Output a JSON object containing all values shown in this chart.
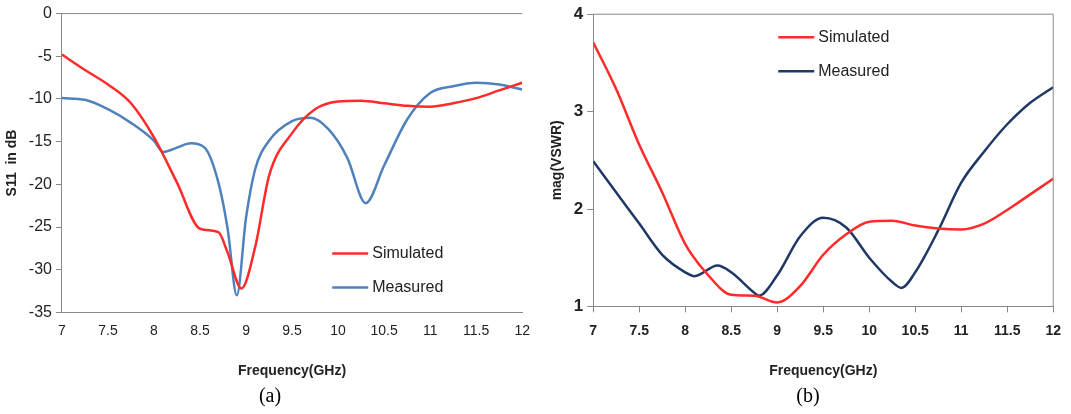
{
  "chart_data": [
    {
      "type": "line",
      "xlabel": "Frequency(GHz)",
      "ylabel": "S11  in dB",
      "xlim": [
        7,
        12
      ],
      "ylim": [
        -35,
        0
      ],
      "xticks": [
        7,
        7.5,
        8,
        8.5,
        9,
        9.5,
        10,
        10.5,
        11,
        11.5,
        12
      ],
      "yticks": [
        -35,
        -30,
        -25,
        -20,
        -15,
        -10,
        -5,
        0
      ],
      "grid": false,
      "legend": "bottom right",
      "marker": "none",
      "annotations": [
        "(a)"
      ],
      "series": [
        {
          "name": "Simulated",
          "color": "#ff2a2a",
          "x": [
            7,
            7.25,
            7.5,
            7.75,
            8,
            8.25,
            8.5,
            8.7,
            8.8,
            8.95,
            9.1,
            9.25,
            9.5,
            9.75,
            10,
            10.25,
            10.5,
            10.75,
            11,
            11.25,
            11.5,
            11.75,
            12
          ],
          "values": [
            -4.8,
            -6.6,
            -8.3,
            -10.5,
            -14.5,
            -19.8,
            -25.2,
            -25.6,
            -28,
            -32.2,
            -27.3,
            -19,
            -14,
            -11.2,
            -10.3,
            -10.2,
            -10.5,
            -10.8,
            -10.9,
            -10.5,
            -9.9,
            -9,
            -8.1
          ]
        },
        {
          "name": "Measured",
          "color": "#4f81bd",
          "x": [
            7,
            7.25,
            7.5,
            7.75,
            8,
            8.1,
            8.25,
            8.4,
            8.55,
            8.7,
            8.8,
            8.9,
            9,
            9.1,
            9.25,
            9.5,
            9.7,
            9.9,
            10.1,
            10.3,
            10.5,
            10.75,
            11,
            11.25,
            11.5,
            11.75,
            12
          ],
          "values": [
            -9.9,
            -10.1,
            -11.2,
            -12.8,
            -14.9,
            -16.2,
            -15.7,
            -15.2,
            -15.7,
            -19.8,
            -25.2,
            -33,
            -23.9,
            -18.2,
            -14.9,
            -12.6,
            -12.2,
            -13.6,
            -16.9,
            -22.2,
            -17.8,
            -12.4,
            -9.3,
            -8.5,
            -8.1,
            -8.3,
            -8.9
          ]
        }
      ]
    },
    {
      "type": "line",
      "xlabel": "Frequency(GHz)",
      "ylabel": "mag(VSWR)",
      "xlim": [
        7,
        12
      ],
      "ylim": [
        1,
        4
      ],
      "xticks": [
        7,
        7.5,
        8,
        8.5,
        9,
        9.5,
        10,
        10.5,
        11,
        11.5,
        12
      ],
      "yticks": [
        1,
        2,
        3,
        4
      ],
      "grid": false,
      "legend": "top",
      "marker": "none",
      "annotations": [
        "(b)"
      ],
      "series": [
        {
          "name": "Simulated",
          "color": "#ff2a2a",
          "x": [
            7,
            7.25,
            7.5,
            7.75,
            8,
            8.25,
            8.5,
            8.75,
            9,
            9.25,
            9.5,
            9.75,
            10,
            10.25,
            10.5,
            10.75,
            11,
            11.25,
            11.5,
            11.75,
            12
          ],
          "values": [
            3.71,
            3.23,
            2.66,
            2.17,
            1.64,
            1.32,
            1.12,
            1.11,
            1.04,
            1.21,
            1.53,
            1.74,
            1.87,
            1.88,
            1.83,
            1.8,
            1.79,
            1.85,
            1.99,
            2.15,
            2.31
          ]
        },
        {
          "name": "Measured",
          "color": "#1f3864",
          "x": [
            7,
            7.25,
            7.5,
            7.75,
            8,
            8.1,
            8.35,
            8.5,
            8.75,
            8.8,
            9,
            9.25,
            9.5,
            9.75,
            10,
            10.25,
            10.35,
            10.5,
            10.75,
            11,
            11.25,
            11.5,
            11.75,
            12
          ],
          "values": [
            2.49,
            2.17,
            1.85,
            1.53,
            1.35,
            1.31,
            1.42,
            1.35,
            1.14,
            1.11,
            1.32,
            1.72,
            1.91,
            1.81,
            1.5,
            1.25,
            1.19,
            1.35,
            1.78,
            2.27,
            2.59,
            2.87,
            3.09,
            3.25
          ]
        }
      ]
    }
  ]
}
